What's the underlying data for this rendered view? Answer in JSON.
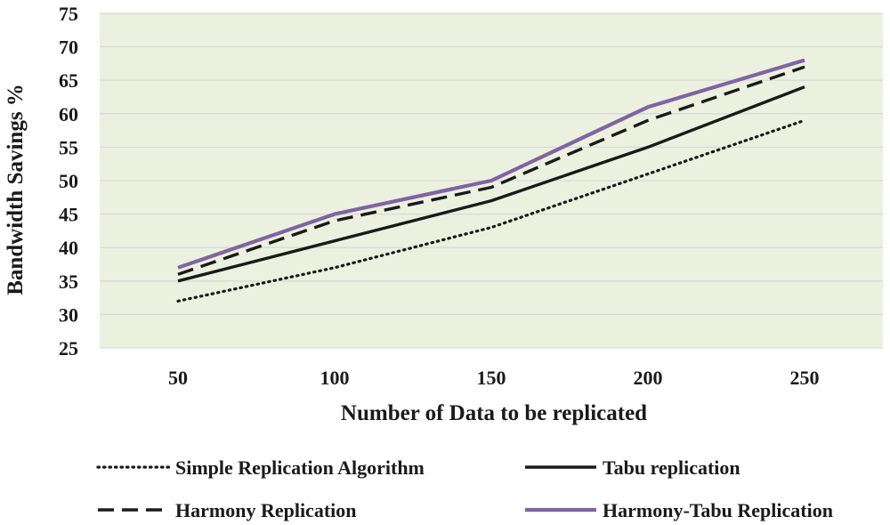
{
  "chart_data": {
    "type": "line",
    "title": "",
    "xlabel": "Number of Data to be replicated",
    "ylabel": "Bandwidth Savings %",
    "categories": [
      "50",
      "100",
      "150",
      "200",
      "250"
    ],
    "ylim": [
      25,
      75
    ],
    "ystep": 5,
    "grid": true,
    "plot_background": "#ebf1de",
    "grid_color": "#d9d9d9",
    "legend_position": "bottom",
    "series": [
      {
        "name": "Simple Replication Algorithm",
        "values": [
          32,
          37,
          43,
          51,
          59
        ],
        "color": "#1a1a1a",
        "style": "dotted"
      },
      {
        "name": "Tabu replication",
        "values": [
          35,
          41,
          47,
          55,
          64
        ],
        "color": "#1a1a1a",
        "style": "solid"
      },
      {
        "name": "Harmony Replication",
        "values": [
          36,
          44,
          49,
          59,
          67
        ],
        "color": "#1a1a1a",
        "style": "dashed"
      },
      {
        "name": "Harmony-Tabu Replication",
        "values": [
          37,
          45,
          50,
          61,
          68
        ],
        "color": "#8064a2",
        "style": "solid"
      }
    ]
  }
}
